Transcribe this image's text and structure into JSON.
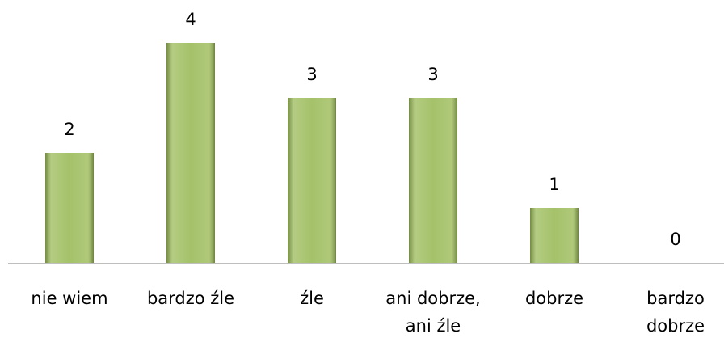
{
  "chart_data": {
    "type": "bar",
    "categories": [
      "nie wiem",
      "bardzo źle",
      "źle",
      "ani dobrze,\nani źle",
      "dobrze",
      "bardzo\ndobrze"
    ],
    "values": [
      2,
      4,
      3,
      3,
      1,
      0
    ],
    "color": "#9bbb59"
  }
}
